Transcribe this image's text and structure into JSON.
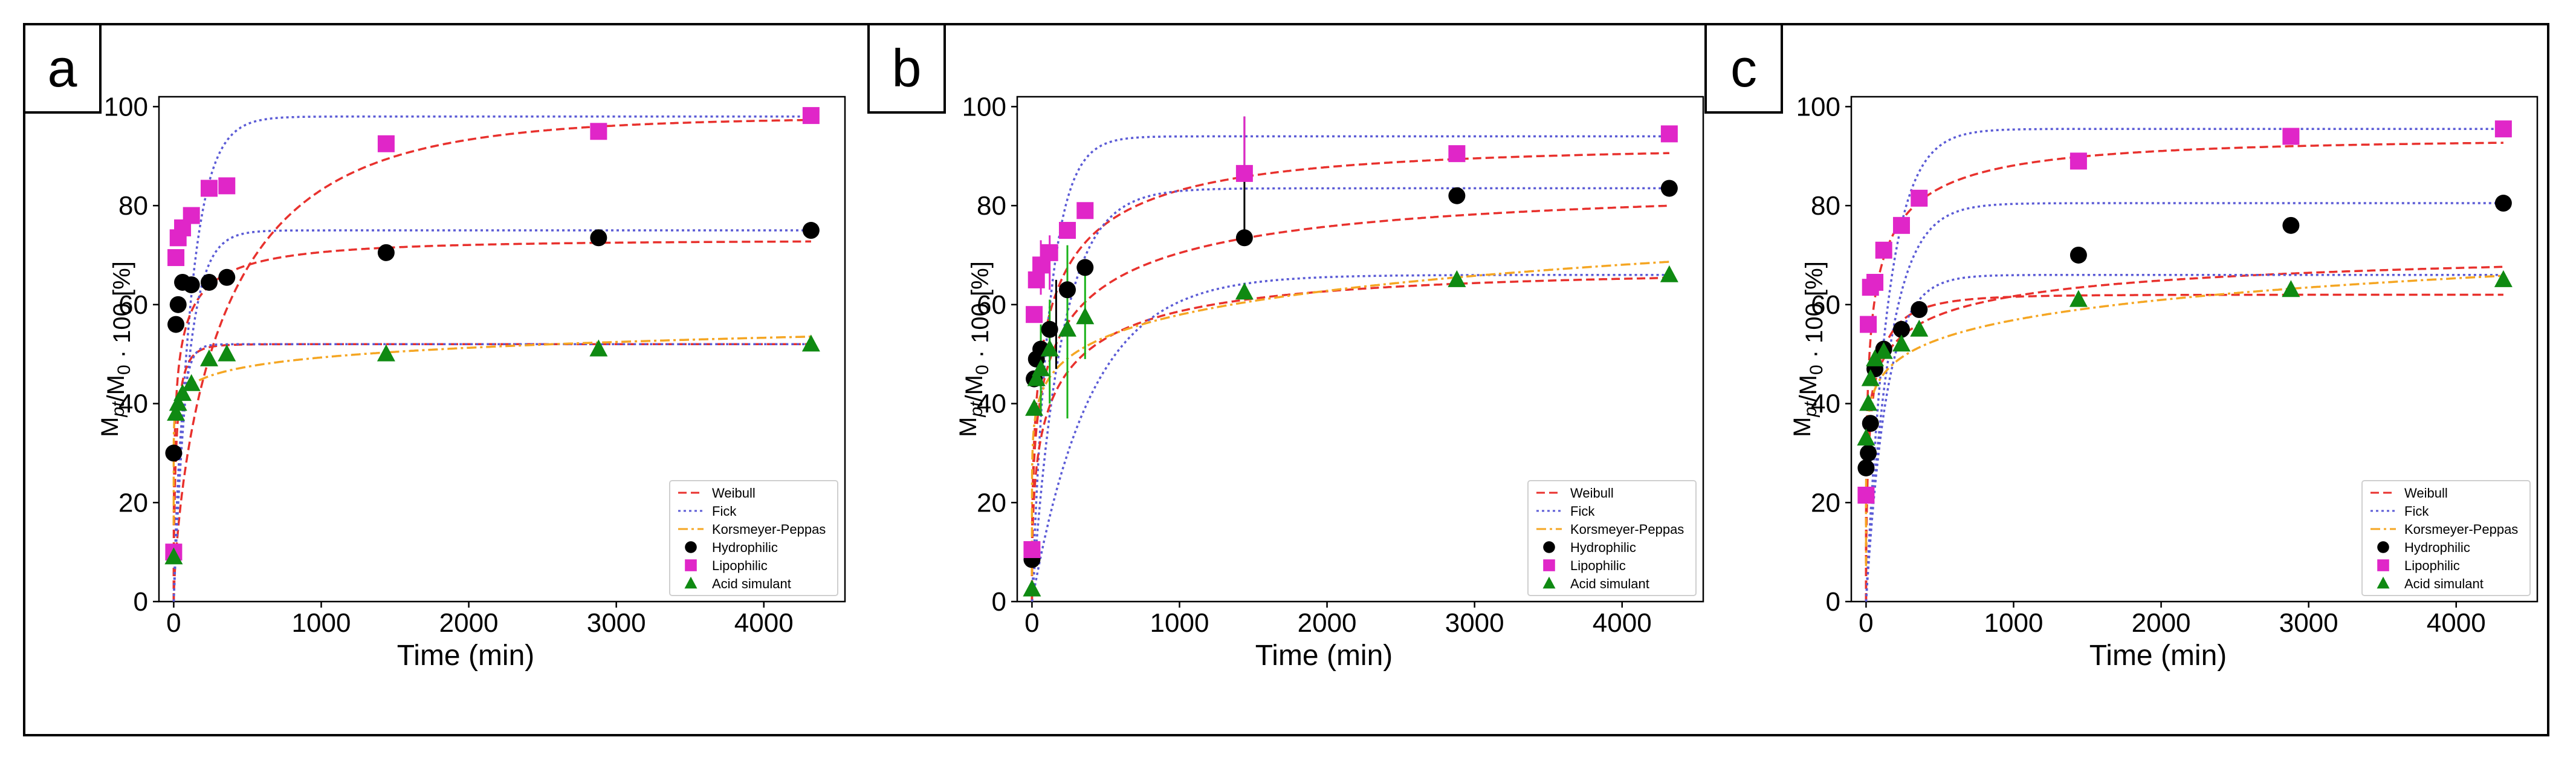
{
  "figure": {
    "panels": [
      "a",
      "b",
      "c"
    ]
  },
  "colors": {
    "weibull": "#e8312d",
    "fick": "#5b5bd6",
    "korsmeyer": "#f5a623",
    "hydrophilic": "#000000",
    "lipophilic": "#e026c8",
    "acid": "#0f8a12",
    "error_b_lipophilic": "#e026c8",
    "error_b_acid": "#1ab31a"
  },
  "chart_data": [
    {
      "panel": "a",
      "type": "scatter",
      "title": "",
      "xlabel": "Time (min)",
      "ylabel": "M_pt/M_0 · 100 [%]",
      "xlim": [
        -100,
        4550
      ],
      "ylim": [
        0,
        102
      ],
      "xticks": [
        0,
        1000,
        2000,
        3000,
        4000
      ],
      "yticks": [
        0,
        20,
        40,
        60,
        80,
        100
      ],
      "legend": {
        "position": "bottom-right",
        "entries": [
          "Weibull",
          "Fick",
          "Korsmeyer-Peppas",
          "Hydrophilic",
          "Lipophilic",
          "Acid simulant"
        ]
      },
      "series": [
        {
          "name": "Hydrophilic",
          "marker": "circle",
          "x": [
            0,
            15,
            30,
            60,
            120,
            240,
            360,
            1440,
            2880,
            4320
          ],
          "y": [
            30,
            56,
            60,
            64.5,
            64,
            64.5,
            65.5,
            70.5,
            73.5,
            75
          ]
        },
        {
          "name": "Lipophilic",
          "marker": "square",
          "x": [
            0,
            15,
            30,
            60,
            120,
            240,
            360,
            1440,
            2880,
            4320
          ],
          "y": [
            10,
            69.5,
            73.5,
            75.5,
            78,
            83.5,
            84,
            92.5,
            95,
            98.2
          ]
        },
        {
          "name": "Acid simulant",
          "marker": "triangle",
          "x": [
            0,
            15,
            30,
            60,
            120,
            240,
            360,
            1440,
            2880,
            4320
          ],
          "y": [
            9,
            38,
            40,
            42,
            44,
            49,
            50,
            50,
            51,
            52
          ]
        }
      ],
      "fits": [
        {
          "model": "Weibull",
          "target": "Lipophilic",
          "a": 97.8,
          "tau": 400,
          "b": 0.7,
          "c": 0
        },
        {
          "model": "Fick",
          "target": "Lipophilic",
          "a": 98,
          "tau": 120,
          "b": 1,
          "c": 0
        },
        {
          "model": "Weibull",
          "target": "Hydrophilic",
          "a": 73,
          "tau": 30,
          "b": 0.35,
          "c": 0
        },
        {
          "model": "Fick",
          "target": "Hydrophilic",
          "a": 75,
          "tau": 100,
          "b": 1,
          "c": 0
        },
        {
          "model": "Weibull",
          "target": "Acid simulant",
          "a": 52,
          "tau": 20,
          "b": 0.6,
          "c": 0
        },
        {
          "model": "Fick",
          "target": "Acid simulant",
          "a": 52,
          "tau": 45,
          "b": 1,
          "c": 0
        },
        {
          "model": "Korsmeyer-Peppas",
          "target": "Acid simulant",
          "k": 33.5,
          "n": 0.056
        }
      ]
    },
    {
      "panel": "b",
      "type": "scatter",
      "title": "",
      "xlabel": "Time (min)",
      "ylabel": "M_pt/M_0 · 100 [%]",
      "xlim": [
        -100,
        4550
      ],
      "ylim": [
        0,
        102
      ],
      "xticks": [
        0,
        1000,
        2000,
        3000,
        4000
      ],
      "yticks": [
        0,
        20,
        40,
        60,
        80,
        100
      ],
      "legend": {
        "position": "bottom-right",
        "entries": [
          "Weibull",
          "Fick",
          "Korsmeyer-Peppas",
          "Hydrophilic",
          "Lipophilic",
          "Acid simulant"
        ]
      },
      "series": [
        {
          "name": "Hydrophilic",
          "marker": "circle",
          "x": [
            0,
            15,
            30,
            60,
            120,
            240,
            360,
            1440,
            2880,
            4320
          ],
          "y": [
            8.5,
            45,
            49,
            51,
            55,
            63,
            67.5,
            73.5,
            82,
            83.5
          ]
        },
        {
          "name": "Lipophilic",
          "marker": "square",
          "x": [
            0,
            15,
            30,
            60,
            120,
            240,
            360,
            1440,
            2880,
            4320
          ],
          "y": [
            10.5,
            58,
            65,
            68,
            70.5,
            75,
            79,
            86.5,
            90.5,
            94.5
          ],
          "err_x": [
            60,
            120,
            1440
          ],
          "err_lo": [
            62,
            63,
            73
          ],
          "err_hi": [
            73,
            74,
            98
          ]
        },
        {
          "name": "Acid simulant",
          "marker": "triangle",
          "x": [
            0,
            15,
            30,
            60,
            120,
            240,
            360,
            1440,
            2880,
            4320
          ],
          "y": [
            2.5,
            39,
            45,
            47,
            51,
            55,
            57.5,
            62.5,
            65,
            66
          ],
          "err_x": [
            60,
            120,
            240,
            360
          ],
          "err_lo": [
            38,
            40,
            37,
            49
          ],
          "err_hi": [
            56,
            61,
            72,
            66
          ]
        }
      ],
      "fits": [
        {
          "model": "Weibull",
          "target": "Lipophilic",
          "a": 92,
          "tau": 120,
          "b": 0.4,
          "c": 0
        },
        {
          "model": "Fick",
          "target": "Lipophilic",
          "a": 94,
          "tau": 120,
          "b": 1,
          "c": 0
        },
        {
          "model": "Weibull",
          "target": "Hydrophilic",
          "a": 84,
          "tau": 180,
          "b": 0.35,
          "c": 0
        },
        {
          "model": "Fick",
          "target": "Hydrophilic",
          "a": 83.5,
          "tau": 200,
          "b": 1,
          "c": 0
        },
        {
          "model": "Weibull",
          "target": "Acid simulant",
          "a": 67,
          "tau": 160,
          "b": 0.4,
          "c": 0
        },
        {
          "model": "Fick",
          "target": "Acid simulant",
          "a": 66,
          "tau": 400,
          "b": 1,
          "c": 0
        },
        {
          "model": "Korsmeyer-Peppas",
          "target": "Acid simulant",
          "k": 26,
          "n": 0.116
        }
      ]
    },
    {
      "panel": "c",
      "type": "scatter",
      "title": "",
      "xlabel": "Time (min)",
      "ylabel": "M_pt/M_0 · 100 [%]",
      "xlim": [
        -100,
        4550
      ],
      "ylim": [
        0,
        102
      ],
      "xticks": [
        0,
        1000,
        2000,
        3000,
        4000
      ],
      "yticks": [
        0,
        20,
        40,
        60,
        80,
        100
      ],
      "legend": {
        "position": "bottom-right",
        "entries": [
          "Weibull",
          "Fick",
          "Korsmeyer-Peppas",
          "Hydrophilic",
          "Lipophilic",
          "Acid simulant"
        ]
      },
      "series": [
        {
          "name": "Hydrophilic",
          "marker": "circle",
          "x": [
            0,
            15,
            30,
            60,
            120,
            240,
            360,
            1440,
            2880,
            4320
          ],
          "y": [
            27,
            30,
            36,
            47,
            51,
            55,
            59,
            70,
            76,
            80.5
          ]
        },
        {
          "name": "Lipophilic",
          "marker": "square",
          "x": [
            0,
            15,
            30,
            60,
            120,
            240,
            360,
            1440,
            2880,
            4320
          ],
          "y": [
            21.5,
            56,
            63.5,
            64.5,
            71,
            76,
            81.5,
            89,
            94,
            95.5
          ]
        },
        {
          "name": "Acid simulant",
          "marker": "triangle",
          "x": [
            0,
            15,
            30,
            60,
            120,
            240,
            360,
            1440,
            2880,
            4320
          ],
          "y": [
            33,
            40,
            45,
            49,
            50.5,
            52,
            55,
            61,
            63,
            65
          ]
        }
      ],
      "fits": [
        {
          "model": "Weibull",
          "target": "Lipophilic",
          "a": 93.5,
          "tau": 50,
          "b": 0.35,
          "c": 0
        },
        {
          "model": "Fick",
          "target": "Lipophilic",
          "a": 95.5,
          "tau": 150,
          "b": 1,
          "c": 0
        },
        {
          "model": "Weibull",
          "target": "Hydrophilic",
          "a": 72,
          "tau": 70,
          "b": 0.25,
          "c": 0
        },
        {
          "model": "Fick",
          "target": "Hydrophilic",
          "a": 80.5,
          "tau": 160,
          "b": 1,
          "c": 0
        },
        {
          "model": "Weibull",
          "target": "Acid simulant",
          "a": 62,
          "tau": 40,
          "b": 0.5,
          "c": 0
        },
        {
          "model": "Fick",
          "target": "Acid simulant",
          "a": 66,
          "tau": 140,
          "b": 1,
          "c": 0
        },
        {
          "model": "Korsmeyer-Peppas",
          "target": "Acid simulant",
          "k": 28.5,
          "n": 0.1
        }
      ]
    }
  ]
}
